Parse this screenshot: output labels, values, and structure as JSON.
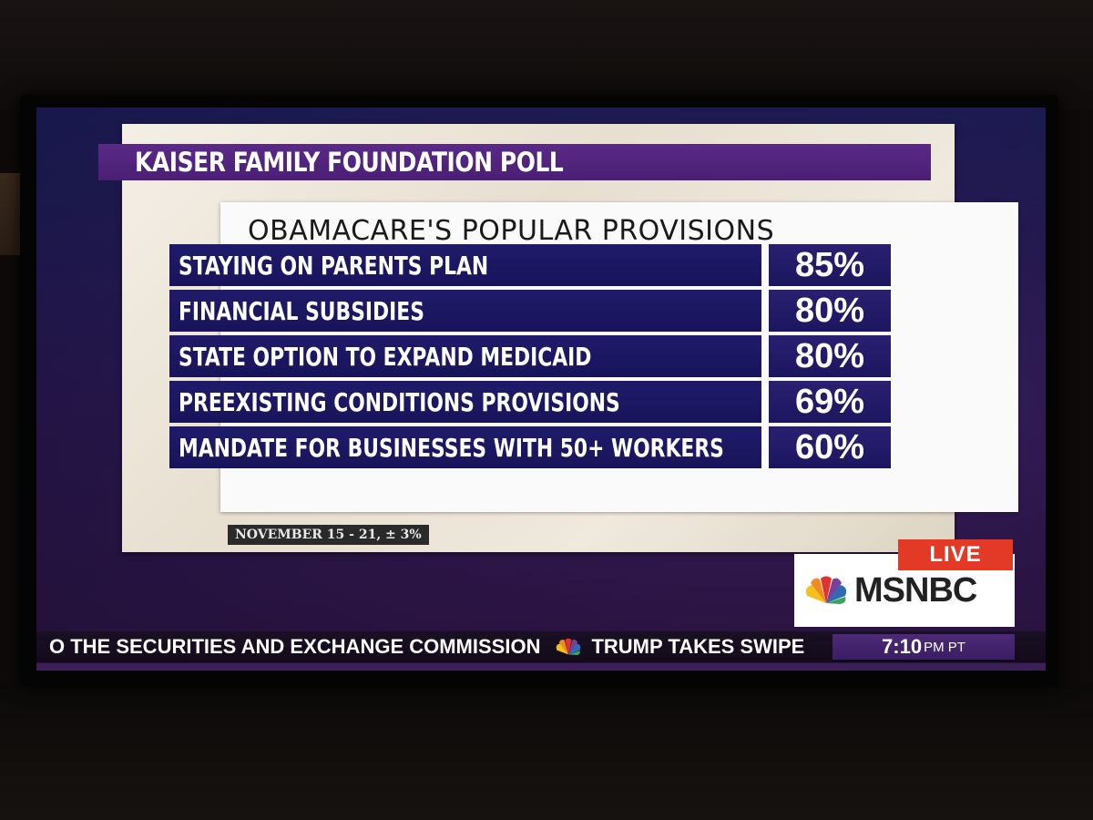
{
  "poll_banner": "KAISER FAMILY FOUNDATION POLL",
  "footnote": "NOVEMBER 15 - 21, ± 3%",
  "chart_data": {
    "type": "table",
    "title": "OBAMACARE'S POPULAR PROVISIONS",
    "rows": [
      {
        "label": "STAYING ON PARENTS PLAN",
        "value": "85%"
      },
      {
        "label": "FINANCIAL SUBSIDIES",
        "value": "80%"
      },
      {
        "label": "STATE OPTION TO EXPAND MEDICAID",
        "value": "80%"
      },
      {
        "label": "PREEXISTING CONDITIONS PROVISIONS",
        "value": "69%"
      },
      {
        "label": "MANDATE FOR BUSINESSES WITH 50+ WORKERS",
        "value": "60%"
      }
    ]
  },
  "bug": {
    "live_label": "LIVE",
    "network": "MSNBC"
  },
  "ticker": {
    "item1": "O THE SECURITIES AND EXCHANGE COMMISSION",
    "item2": "TRUMP TAKES SWIPE",
    "time": "7:10",
    "time_suffix": "PM PT"
  },
  "colors": {
    "banner_purple": "#4a1f74",
    "row_navy": "#17145a",
    "live_red": "#e23a26"
  },
  "icons": {
    "network_logo": "nbc-peacock-icon"
  }
}
